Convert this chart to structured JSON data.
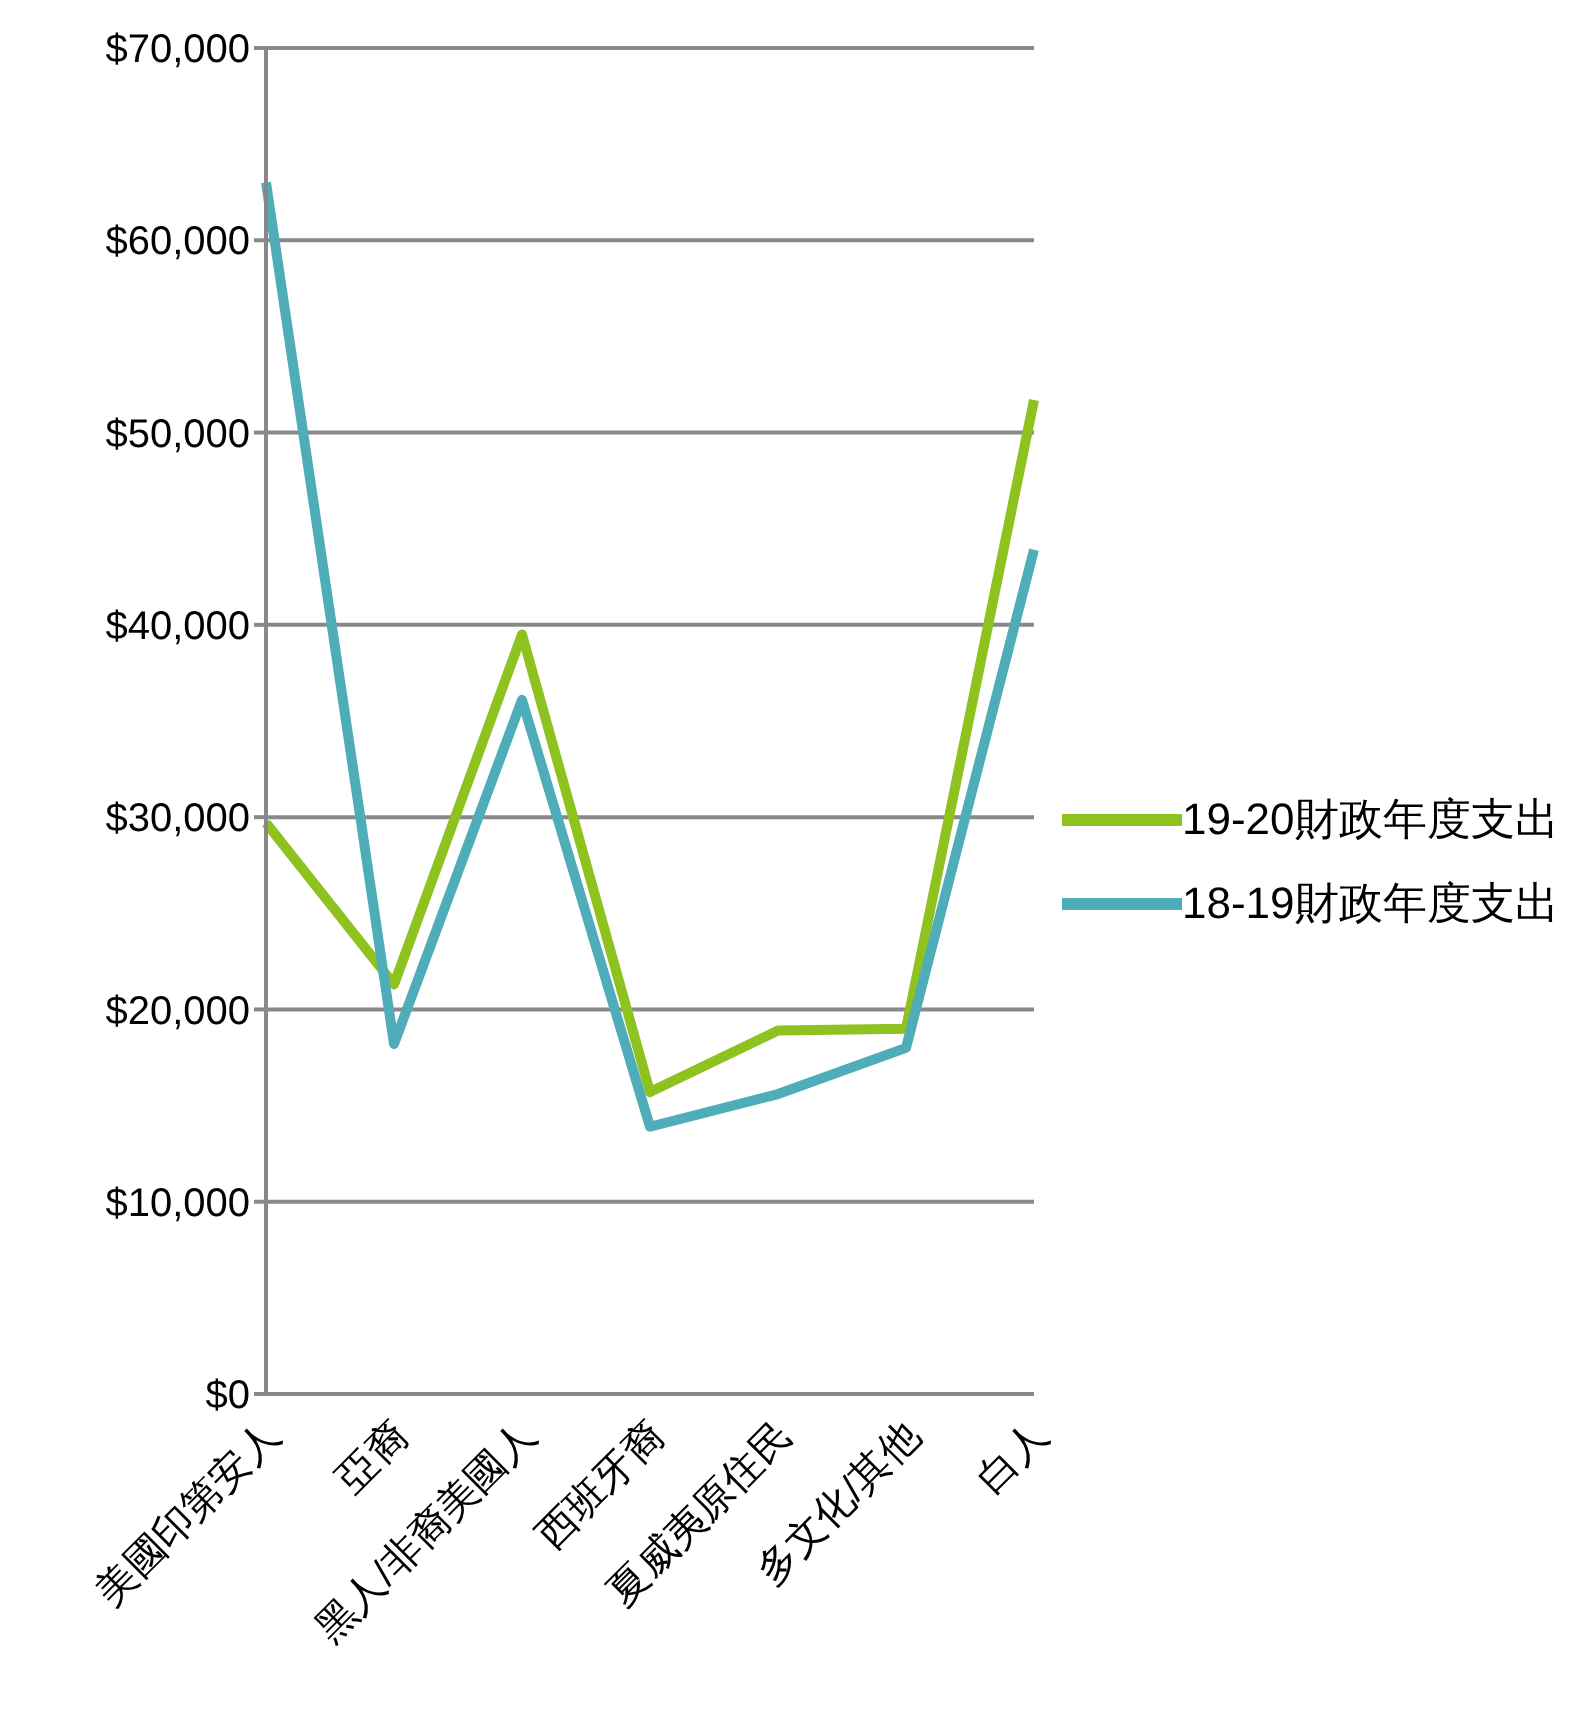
{
  "chart_data": {
    "type": "line",
    "categories": [
      "美國印第安人",
      "亞裔",
      "黑人/非裔美國人",
      "西班牙裔",
      "夏威夷原住民",
      "多文化/其他",
      "白人"
    ],
    "series": [
      {
        "name": "19-20財政年度支出",
        "color": "#8dc21f",
        "values": [
          29700,
          21300,
          39500,
          15700,
          18900,
          19000,
          51700
        ]
      },
      {
        "name": "18-19財政年度支出",
        "color": "#4fadba",
        "values": [
          63000,
          18200,
          36100,
          13900,
          15600,
          18000,
          43900
        ]
      }
    ],
    "ylim": [
      0,
      70000
    ],
    "yticks": [
      {
        "value": 0,
        "label": "$0"
      },
      {
        "value": 10000,
        "label": "$10,000"
      },
      {
        "value": 20000,
        "label": "$20,000"
      },
      {
        "value": 30000,
        "label": "$30,000"
      },
      {
        "value": 40000,
        "label": "$40,000"
      },
      {
        "value": 50000,
        "label": "$50,000"
      },
      {
        "value": 60000,
        "label": "$60,000"
      },
      {
        "value": 70000,
        "label": "$70,000"
      }
    ],
    "grid": "y",
    "legend": "right",
    "marker": "none",
    "line_style": "solid"
  }
}
